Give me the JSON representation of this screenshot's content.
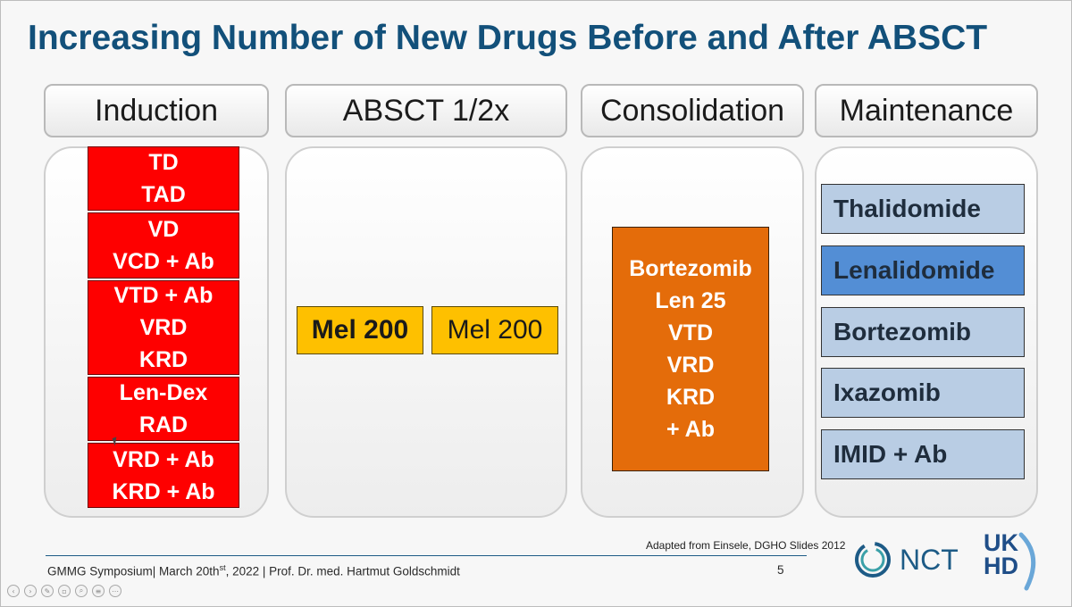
{
  "slide": {
    "title": "Increasing Number of New Drugs Before and After ABSCT",
    "columns": [
      {
        "header": "Induction"
      },
      {
        "header": "ABSCT 1/2x"
      },
      {
        "header": "Consolidation"
      },
      {
        "header": "Maintenance"
      }
    ],
    "induction_boxes": [
      {
        "lines": [
          "TD",
          "TAD"
        ]
      },
      {
        "lines": [
          "VD",
          "VCD + Ab"
        ]
      },
      {
        "lines": [
          "VTD + Ab",
          "VRD",
          "KRD"
        ]
      },
      {
        "lines": [
          "Len-Dex",
          "RAD"
        ]
      },
      {
        "lines": [
          "VRD + Ab",
          "KRD + Ab"
        ]
      }
    ],
    "absct_boxes": [
      {
        "label": "Mel 200",
        "bold": true
      },
      {
        "label": "Mel 200",
        "bold": false
      }
    ],
    "consolidation_box": {
      "lines": [
        "Bortezomib",
        "Len 25",
        "VTD",
        "VRD",
        "KRD",
        "+ Ab"
      ]
    },
    "maintenance_boxes": [
      {
        "label": "Thalidomide",
        "highlighted": false
      },
      {
        "label": "Lenalidomide",
        "highlighted": true
      },
      {
        "label": "Bortezomib",
        "highlighted": false
      },
      {
        "label": "Ixazomib",
        "highlighted": false
      },
      {
        "label": "IMID + Ab",
        "highlighted": false
      }
    ],
    "colors": {
      "title": "#12507a",
      "induction_red": "#fe0000",
      "absct_yellow": "#fec000",
      "consolidation_orange": "#e46c0a",
      "maintenance_light_blue": "#b9cde4",
      "maintenance_highlight_blue": "#538ed5"
    }
  },
  "footer": {
    "citation": "Adapted from Einsele, DGHO Slides 2012",
    "text_before_sup": "GMMG Symposium| March 20th",
    "sup": "st",
    "text_after_sup": ", 2022 | Prof. Dr. med. Hartmut Goldschmidt",
    "page_number": "5"
  },
  "logos": {
    "nct": "NCT",
    "ukhd_line1": "UK",
    "ukhd_line2": "HD"
  },
  "viewer_toolbar": {
    "icons": [
      "previous-icon",
      "next-icon",
      "pen-icon",
      "copy-icon",
      "zoom-icon",
      "menu-icon",
      "more-icon"
    ]
  }
}
